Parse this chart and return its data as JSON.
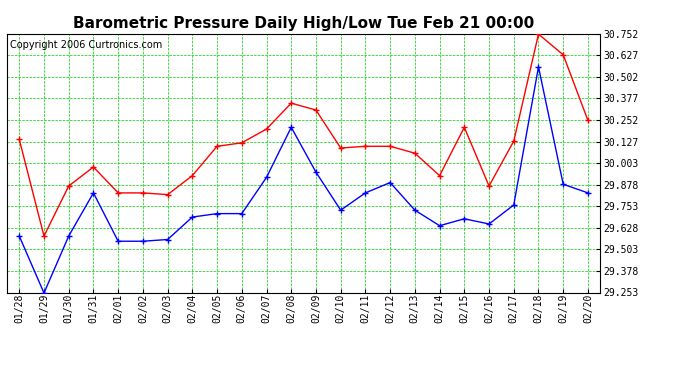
{
  "title": "Barometric Pressure Daily High/Low Tue Feb 21 00:00",
  "copyright": "Copyright 2006 Curtronics.com",
  "x_labels": [
    "01/28",
    "01/29",
    "01/30",
    "01/31",
    "02/01",
    "02/02",
    "02/03",
    "02/04",
    "02/05",
    "02/06",
    "02/07",
    "02/08",
    "02/09",
    "02/10",
    "02/11",
    "02/12",
    "02/13",
    "02/14",
    "02/15",
    "02/16",
    "02/17",
    "02/18",
    "02/19",
    "02/20"
  ],
  "high_vals": [
    30.14,
    29.58,
    29.87,
    29.98,
    29.83,
    29.83,
    29.82,
    29.93,
    30.1,
    30.12,
    30.2,
    30.35,
    30.31,
    30.09,
    30.1,
    30.1,
    30.06,
    29.93,
    30.21,
    29.87,
    30.13,
    30.75,
    30.63,
    30.25
  ],
  "low_vals": [
    29.58,
    29.25,
    29.58,
    29.83,
    29.55,
    29.55,
    29.56,
    29.69,
    29.71,
    29.71,
    29.92,
    30.21,
    29.95,
    29.73,
    29.83,
    29.89,
    29.73,
    29.64,
    29.68,
    29.65,
    29.76,
    30.56,
    29.88,
    29.83
  ],
  "ylim_min": 29.253,
  "ylim_max": 30.752,
  "ytick_values": [
    29.253,
    29.378,
    29.503,
    29.628,
    29.753,
    29.878,
    30.003,
    30.127,
    30.252,
    30.377,
    30.502,
    30.627,
    30.752
  ],
  "high_color": "#ff0000",
  "low_color": "#0000ff",
  "bg_color": "#ffffff",
  "plot_bg_color": "#ffffff",
  "grid_color": "#00cc00",
  "title_fontsize": 11,
  "copyright_fontsize": 7,
  "tick_fontsize": 7
}
